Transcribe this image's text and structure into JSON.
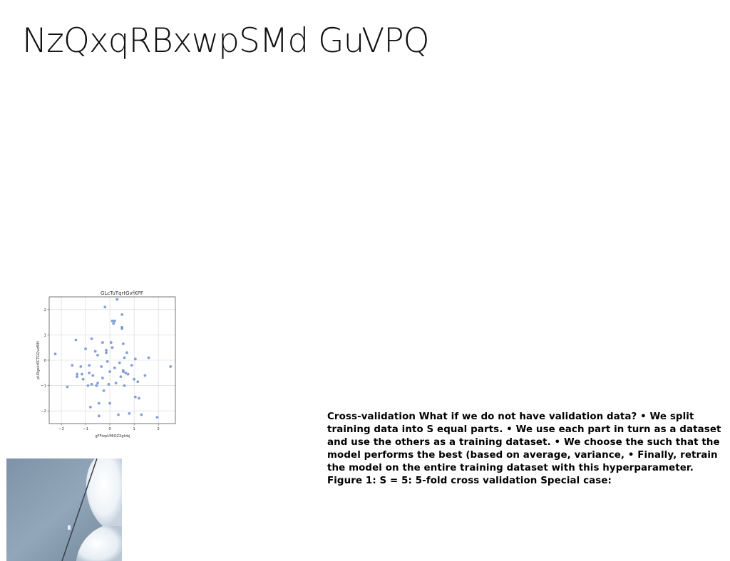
{
  "slide": {
    "title": "NzQxqRBxwpSMd GuVPQ",
    "body_text": "Cross-validation What if we do not have validation data? • We split training data into S equal parts. • We use each part in turn as a dataset and use the others as a training dataset. • We choose the such that the model performs the best (based on average, variance, • Finally, retrain the model on the entire training dataset with this hyperparameter. Figure 1: S = 5: 5-fold cross validation Special case:"
  },
  "photo": {
    "icon": "photo-abstract-image"
  },
  "chart_data": {
    "type": "scatter",
    "title": "GLcTuTqrtGvfKPF",
    "xlabel": "gFFtzpUMIOZXgfzbj",
    "ylabel": "pURgekt0CTGQvofIIH",
    "xlim": [
      -2.5,
      2.7
    ],
    "ylim": [
      -2.5,
      2.5
    ],
    "xticks": [
      -2,
      -1,
      0,
      1,
      2
    ],
    "yticks": [
      -2,
      -1,
      0,
      1,
      2
    ],
    "xtick_labels": [
      "−2",
      "−1",
      "0",
      "1",
      "2"
    ],
    "ytick_labels": [
      "−2",
      "−1",
      "0",
      "1",
      "2"
    ],
    "grid": true,
    "color": "#6f8fd0",
    "points": [
      {
        "x": -2.25,
        "y": 0.25
      },
      {
        "x": -1.75,
        "y": -1.05
      },
      {
        "x": -1.55,
        "y": -0.2
      },
      {
        "x": -1.4,
        "y": 0.8
      },
      {
        "x": -1.35,
        "y": -0.55
      },
      {
        "x": -1.35,
        "y": -0.65
      },
      {
        "x": -1.2,
        "y": -0.25
      },
      {
        "x": -1.15,
        "y": -0.55
      },
      {
        "x": -1.1,
        "y": -0.75
      },
      {
        "x": -1.0,
        "y": 0.45
      },
      {
        "x": -0.9,
        "y": -1.0
      },
      {
        "x": -0.85,
        "y": -0.5
      },
      {
        "x": -0.85,
        "y": -0.2
      },
      {
        "x": -0.8,
        "y": -1.85
      },
      {
        "x": -0.75,
        "y": 0.85
      },
      {
        "x": -0.75,
        "y": -0.95
      },
      {
        "x": -0.7,
        "y": -0.6
      },
      {
        "x": -0.6,
        "y": 0.35
      },
      {
        "x": -0.55,
        "y": -1.0
      },
      {
        "x": -0.5,
        "y": -0.9
      },
      {
        "x": -0.5,
        "y": 0.2
      },
      {
        "x": -0.45,
        "y": -2.2
      },
      {
        "x": -0.45,
        "y": -1.7
      },
      {
        "x": -0.35,
        "y": -0.25
      },
      {
        "x": -0.3,
        "y": 0.7
      },
      {
        "x": -0.3,
        "y": -0.7
      },
      {
        "x": -0.25,
        "y": -1.2
      },
      {
        "x": -0.2,
        "y": 2.1
      },
      {
        "x": -0.15,
        "y": 0.4
      },
      {
        "x": -0.15,
        "y": 0.3
      },
      {
        "x": -0.1,
        "y": -0.05
      },
      {
        "x": -0.05,
        "y": -0.95
      },
      {
        "x": 0.0,
        "y": -1.7
      },
      {
        "x": 0.0,
        "y": -0.45
      },
      {
        "x": 0.05,
        "y": 0.7
      },
      {
        "x": 0.1,
        "y": 0.5
      },
      {
        "x": 0.1,
        "y": 1.55
      },
      {
        "x": 0.15,
        "y": 1.45
      },
      {
        "x": 0.2,
        "y": 1.55
      },
      {
        "x": 0.2,
        "y": -0.3
      },
      {
        "x": 0.25,
        "y": -0.9
      },
      {
        "x": 0.3,
        "y": 2.4
      },
      {
        "x": 0.35,
        "y": -2.15
      },
      {
        "x": 0.4,
        "y": -0.1
      },
      {
        "x": 0.45,
        "y": -0.65
      },
      {
        "x": 0.5,
        "y": 1.8
      },
      {
        "x": 0.5,
        "y": 1.3
      },
      {
        "x": 0.5,
        "y": 1.25
      },
      {
        "x": 0.55,
        "y": -0.45
      },
      {
        "x": 0.55,
        "y": -0.4
      },
      {
        "x": 0.55,
        "y": 0.65
      },
      {
        "x": 0.6,
        "y": -1.0
      },
      {
        "x": 0.6,
        "y": 0.1
      },
      {
        "x": 0.65,
        "y": -0.5
      },
      {
        "x": 0.7,
        "y": 0.3
      },
      {
        "x": 0.75,
        "y": -0.55
      },
      {
        "x": 0.8,
        "y": -2.1
      },
      {
        "x": 0.9,
        "y": -0.2
      },
      {
        "x": 1.0,
        "y": -0.75
      },
      {
        "x": 1.05,
        "y": 0.05
      },
      {
        "x": 1.05,
        "y": -1.45
      },
      {
        "x": 1.15,
        "y": -0.85
      },
      {
        "x": 1.2,
        "y": -1.5
      },
      {
        "x": 1.3,
        "y": -2.15
      },
      {
        "x": 1.45,
        "y": -0.6
      },
      {
        "x": 1.6,
        "y": 0.1
      },
      {
        "x": 1.95,
        "y": -2.25
      },
      {
        "x": 2.5,
        "y": -0.25
      }
    ]
  }
}
